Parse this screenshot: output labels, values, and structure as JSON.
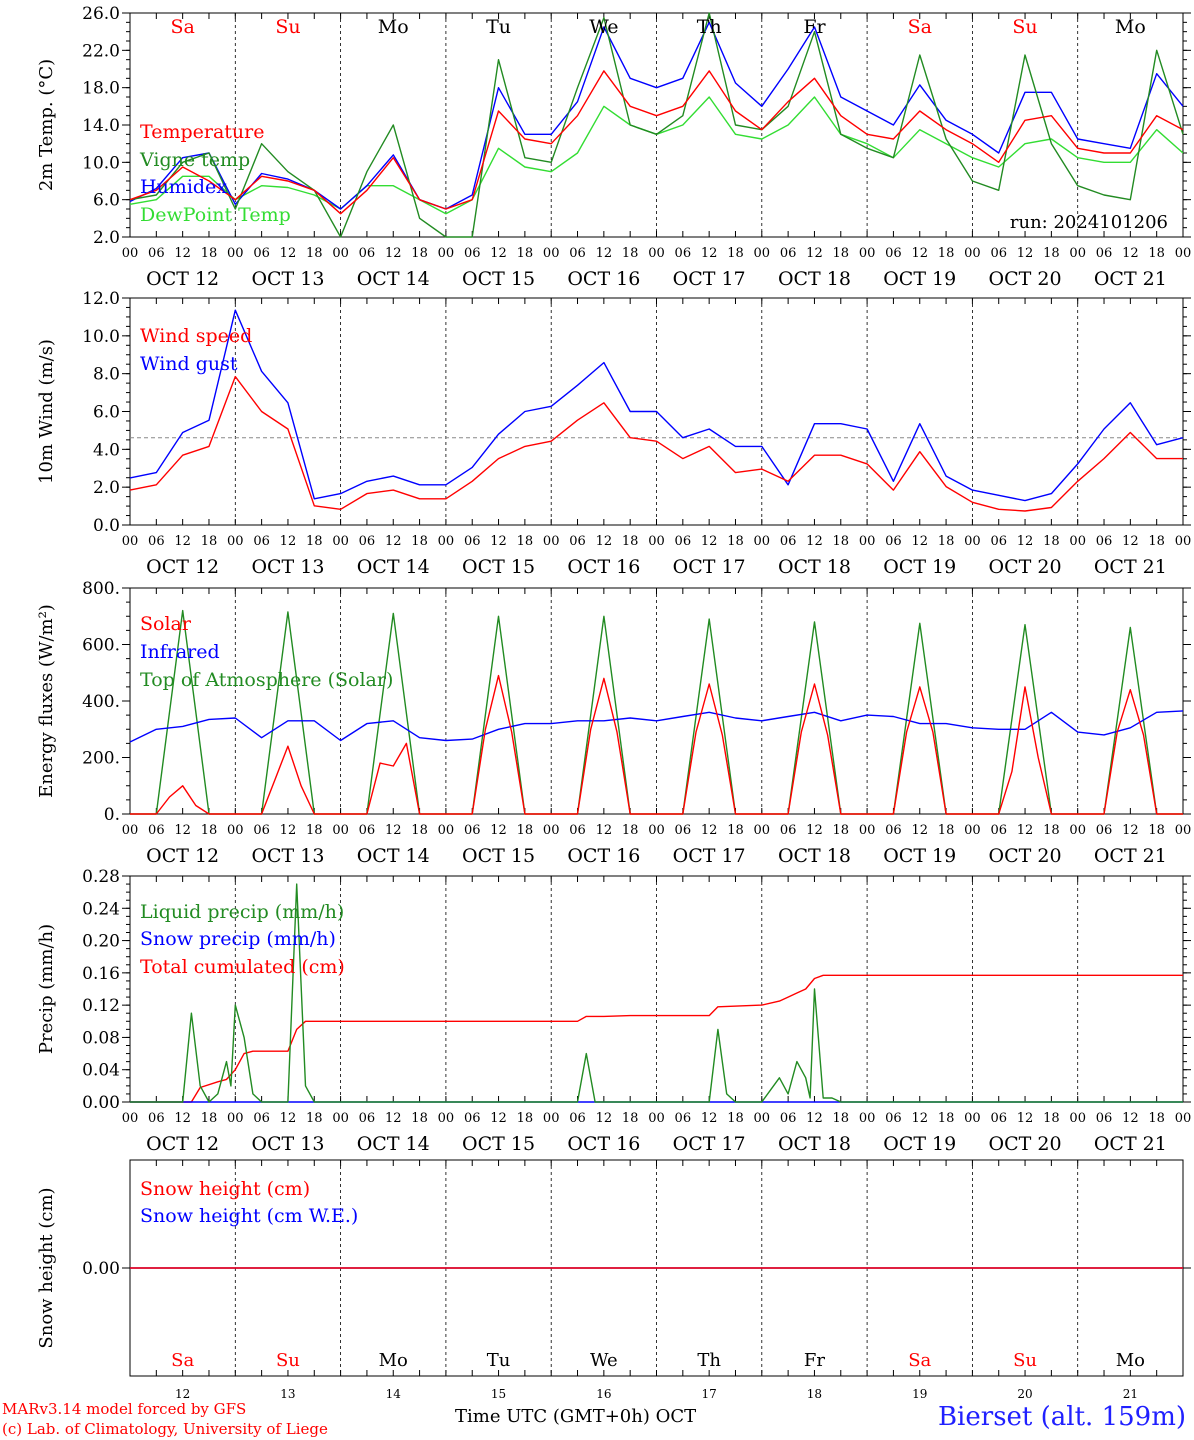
{
  "days": [
    "Sa",
    "Su",
    "Mo",
    "Tu",
    "We",
    "Th",
    "Fr",
    "Sa",
    "Su",
    "Mo"
  ],
  "day_colors": [
    "#ff0000",
    "#ff0000",
    "#000000",
    "#000000",
    "#000000",
    "#000000",
    "#000000",
    "#ff0000",
    "#ff0000",
    "#000000"
  ],
  "date_labels": [
    "OCT 12",
    "OCT 13",
    "OCT 14",
    "OCT 15",
    "OCT 16",
    "OCT 17",
    "OCT 18",
    "OCT 19",
    "OCT 20",
    "OCT 21"
  ],
  "hour_labels": [
    "00",
    "06",
    "12",
    "18"
  ],
  "bottom_day_numbers": [
    "12",
    "13",
    "14",
    "15",
    "16",
    "17",
    "18",
    "19",
    "20",
    "21"
  ],
  "x_axis_title": "Time UTC (GMT+0h) OCT",
  "credits": [
    "MARv3.14 model forced by GFS",
    "(c) Lab. of Climatology, University of Liege"
  ],
  "station": "Bierset (alt. 159m)",
  "run_label": "run: 2024101206",
  "chart_data": [
    {
      "type": "line",
      "ylabel": "2m Temp. (°C)",
      "ylim": [
        2,
        26
      ],
      "yticks": [
        "2.0",
        "6.0",
        "10.0",
        "14.0",
        "18.0",
        "22.0",
        "26.0"
      ],
      "x_unit": "hours since OCT 12 00 UTC",
      "series": [
        {
          "name": "Temperature",
          "color": "#ff0000",
          "x": [
            0,
            6,
            12,
            18,
            24,
            30,
            36,
            42,
            48,
            54,
            60,
            66,
            72,
            78,
            84,
            90,
            96,
            102,
            108,
            114,
            120,
            126,
            132,
            138,
            144,
            150,
            156,
            162,
            168,
            174,
            180,
            186,
            192,
            198,
            204,
            210,
            216,
            222,
            228,
            234,
            240
          ],
          "y": [
            6,
            7,
            9.5,
            8,
            6,
            8.5,
            8,
            7,
            4.5,
            7,
            10.5,
            6,
            5,
            6,
            15.5,
            12.5,
            12,
            15,
            19.8,
            16,
            15,
            16,
            19.8,
            15.5,
            13.5,
            16.5,
            19,
            15,
            13,
            12.5,
            15.5,
            13.5,
            12,
            10,
            14.5,
            15,
            11.5,
            11,
            11,
            15,
            13.5
          ]
        },
        {
          "name": "Vigne temp",
          "color": "#228b22",
          "x": [
            0,
            6,
            12,
            18,
            24,
            30,
            36,
            42,
            48,
            54,
            60,
            66,
            72,
            78,
            84,
            90,
            96,
            102,
            108,
            114,
            120,
            126,
            132,
            138,
            144,
            150,
            156,
            162,
            168,
            174,
            180,
            186,
            192,
            198,
            204,
            210,
            216,
            222,
            228,
            234,
            240
          ],
          "y": [
            6,
            6.5,
            10,
            11,
            5,
            12,
            9,
            7,
            0,
            9,
            14,
            4,
            1,
            1,
            21,
            10.5,
            10,
            18,
            25.5,
            14,
            13,
            15,
            26,
            14,
            13.5,
            16,
            24,
            13,
            11.5,
            10.5,
            21.5,
            12.5,
            8,
            7,
            21.5,
            12,
            7.5,
            6.5,
            6,
            22,
            13
          ]
        },
        {
          "name": "Humidex",
          "color": "#0000ff",
          "x": [
            0,
            6,
            12,
            18,
            24,
            30,
            36,
            42,
            48,
            54,
            60,
            66,
            72,
            78,
            84,
            90,
            96,
            102,
            108,
            114,
            120,
            126,
            132,
            138,
            144,
            150,
            156,
            162,
            168,
            174,
            180,
            186,
            192,
            198,
            204,
            210,
            216,
            222,
            228,
            234,
            240
          ],
          "y": [
            5.8,
            7.2,
            10.5,
            11,
            5.5,
            8.8,
            8.2,
            7,
            5,
            7.5,
            10.8,
            6,
            5,
            6.5,
            18,
            13,
            13,
            16.5,
            24.5,
            19,
            18,
            19,
            25,
            18.5,
            16,
            20,
            24.5,
            17,
            15.5,
            14,
            18.3,
            14.5,
            13,
            11,
            17.5,
            17.5,
            12.5,
            12,
            11.5,
            19.5,
            16
          ]
        },
        {
          "name": "DewPoint Temp",
          "color": "#33dd33",
          "x": [
            0,
            6,
            12,
            18,
            24,
            30,
            36,
            42,
            48,
            54,
            60,
            66,
            72,
            78,
            84,
            90,
            96,
            102,
            108,
            114,
            120,
            126,
            132,
            138,
            144,
            150,
            156,
            162,
            168,
            174,
            180,
            186,
            192,
            198,
            204,
            210,
            216,
            222,
            228,
            234,
            240
          ],
          "y": [
            5.5,
            6,
            8.5,
            8.5,
            6,
            7.5,
            7.3,
            6.5,
            5,
            7.5,
            7.5,
            6,
            4.5,
            6,
            11.5,
            9.5,
            9,
            11,
            16,
            14,
            13,
            14,
            17,
            13,
            12.5,
            14,
            17,
            13,
            12,
            10.5,
            13.5,
            12,
            10.5,
            9.5,
            12,
            12.5,
            10.5,
            10,
            10,
            13.5,
            11
          ]
        }
      ]
    },
    {
      "type": "line",
      "ylabel": "10m Wind (m/s)",
      "ylim": [
        0,
        13
      ],
      "yticks": [
        "0.0",
        "2.0",
        "4.0",
        "6.0",
        "8.0",
        "10.0",
        "12.0"
      ],
      "reference_line": 5,
      "x_unit": "hours since OCT 12 00 UTC",
      "series": [
        {
          "name": "Wind speed",
          "color": "#ff0000",
          "x": [
            0,
            6,
            12,
            18,
            24,
            30,
            36,
            42,
            48,
            54,
            60,
            66,
            72,
            78,
            84,
            90,
            96,
            102,
            108,
            114,
            120,
            126,
            132,
            138,
            144,
            150,
            156,
            162,
            168,
            174,
            180,
            186,
            192,
            198,
            204,
            210,
            216,
            222,
            228,
            234,
            240
          ],
          "y": [
            2,
            2.3,
            4,
            4.5,
            8.5,
            6.5,
            5.5,
            1.1,
            0.9,
            1.8,
            2,
            1.5,
            1.5,
            2.5,
            3.8,
            4.5,
            4.8,
            6,
            7,
            5,
            4.8,
            3.8,
            4.5,
            3,
            3.2,
            2.5,
            4,
            4,
            3.5,
            2,
            4.2,
            2.2,
            1.3,
            0.9,
            0.8,
            1,
            2.5,
            3.8,
            5.3,
            3.8,
            3.8
          ]
        },
        {
          "name": "Wind gust",
          "color": "#0000ff",
          "x": [
            0,
            6,
            12,
            18,
            24,
            30,
            36,
            42,
            48,
            54,
            60,
            66,
            72,
            78,
            84,
            90,
            96,
            102,
            108,
            114,
            120,
            126,
            132,
            138,
            144,
            150,
            156,
            162,
            168,
            174,
            180,
            186,
            192,
            198,
            204,
            210,
            216,
            222,
            228,
            234,
            240
          ],
          "y": [
            2.7,
            3,
            5.3,
            6,
            12.3,
            8.8,
            7,
            1.5,
            1.8,
            2.5,
            2.8,
            2.3,
            2.3,
            3.3,
            5.2,
            6.5,
            6.8,
            8,
            9.3,
            6.5,
            6.5,
            5,
            5.5,
            4.5,
            4.5,
            2.3,
            5.8,
            5.8,
            5.5,
            2.5,
            5.8,
            2.8,
            2,
            1.7,
            1.4,
            1.8,
            3.5,
            5.5,
            7,
            4.6,
            5
          ]
        }
      ]
    },
    {
      "type": "line",
      "ylabel": "Energy fluxes (W/m²)",
      "ylim": [
        0,
        800
      ],
      "yticks": [
        "0.",
        "200.",
        "400.",
        "600.",
        "800."
      ],
      "x_unit": "hours since OCT 12 00 UTC",
      "series": [
        {
          "name": "Solar",
          "color": "#ff0000",
          "x": [
            0,
            6,
            9,
            12,
            15,
            18,
            24,
            30,
            33,
            36,
            39,
            42,
            48,
            54,
            57,
            60,
            63,
            66,
            72,
            78,
            81,
            84,
            87,
            90,
            96,
            102,
            105,
            108,
            111,
            114,
            120,
            126,
            129,
            132,
            135,
            138,
            144,
            150,
            153,
            156,
            159,
            162,
            168,
            174,
            177,
            180,
            183,
            186,
            192,
            198,
            201,
            204,
            207,
            210,
            216,
            222,
            225,
            228,
            231,
            234,
            240
          ],
          "y": [
            0,
            0,
            60,
            100,
            30,
            0,
            0,
            0,
            120,
            240,
            100,
            0,
            0,
            0,
            180,
            170,
            250,
            0,
            0,
            0,
            300,
            490,
            290,
            0,
            0,
            0,
            300,
            480,
            290,
            0,
            0,
            0,
            290,
            460,
            280,
            0,
            0,
            0,
            290,
            460,
            280,
            0,
            0,
            0,
            290,
            450,
            290,
            0,
            0,
            0,
            150,
            450,
            200,
            0,
            0,
            0,
            290,
            440,
            280,
            0,
            0
          ]
        },
        {
          "name": "Infrared",
          "color": "#0000ff",
          "x": [
            0,
            6,
            12,
            18,
            24,
            30,
            36,
            42,
            48,
            54,
            60,
            66,
            72,
            78,
            84,
            90,
            96,
            102,
            108,
            114,
            120,
            126,
            132,
            138,
            144,
            150,
            156,
            162,
            168,
            174,
            180,
            186,
            192,
            198,
            204,
            210,
            216,
            222,
            228,
            234,
            240
          ],
          "y": [
            255,
            300,
            310,
            335,
            340,
            270,
            330,
            330,
            260,
            320,
            330,
            270,
            260,
            265,
            300,
            320,
            320,
            330,
            330,
            340,
            330,
            345,
            360,
            340,
            330,
            345,
            360,
            330,
            350,
            345,
            320,
            320,
            305,
            300,
            300,
            360,
            290,
            280,
            305,
            360,
            365
          ]
        },
        {
          "name": "Top of Atmosphere (Solar)",
          "color": "#228b22",
          "x": [
            0,
            6,
            12,
            18,
            24,
            30,
            36,
            42,
            48,
            54,
            60,
            66,
            72,
            78,
            84,
            90,
            96,
            102,
            108,
            114,
            120,
            126,
            132,
            138,
            144,
            150,
            156,
            162,
            168,
            174,
            180,
            186,
            192,
            198,
            204,
            210,
            216,
            222,
            228,
            234,
            240
          ],
          "y": [
            0,
            0,
            720,
            0,
            0,
            0,
            715,
            0,
            0,
            0,
            710,
            0,
            0,
            0,
            700,
            0,
            0,
            0,
            700,
            0,
            0,
            0,
            690,
            0,
            0,
            0,
            680,
            0,
            0,
            0,
            675,
            0,
            0,
            0,
            670,
            0,
            0,
            0,
            660,
            0,
            0
          ]
        }
      ]
    },
    {
      "type": "line",
      "ylabel": "Precip (mm/h)",
      "ylim": [
        0,
        0.28
      ],
      "yticks": [
        "0.00",
        "0.04",
        "0.08",
        "0.12",
        "0.16",
        "0.20",
        "0.24",
        "0.28"
      ],
      "x_unit": "hours since OCT 12 00 UTC",
      "series": [
        {
          "name": "Liquid precip (mm/h)",
          "color": "#228b22",
          "x": [
            0,
            12,
            14,
            16,
            18,
            20,
            22,
            23,
            24,
            26,
            28,
            30,
            36,
            38,
            40,
            42,
            44,
            48,
            102,
            104,
            106,
            108,
            114,
            132,
            134,
            136,
            138,
            144,
            148,
            150,
            152,
            154,
            155,
            156,
            158,
            160,
            162,
            168,
            240
          ],
          "y": [
            0,
            0,
            0.11,
            0.02,
            0,
            0.01,
            0.05,
            0.02,
            0.12,
            0.08,
            0.01,
            0,
            0,
            0.27,
            0.02,
            0,
            0,
            0,
            0,
            0.06,
            0,
            0,
            0,
            0,
            0.09,
            0.01,
            0,
            0,
            0.03,
            0.01,
            0.05,
            0.03,
            0.005,
            0.14,
            0.005,
            0.005,
            0,
            0,
            0
          ]
        },
        {
          "name": "Snow precip (mm/h)",
          "color": "#0000ff",
          "x": [
            0,
            240
          ],
          "y": [
            0,
            0
          ]
        },
        {
          "name": "Total cumulated (cm)",
          "color": "#ff0000",
          "x": [
            0,
            14,
            16,
            20,
            22,
            24,
            26,
            28,
            36,
            38,
            40,
            42,
            48,
            96,
            102,
            104,
            108,
            114,
            132,
            134,
            144,
            148,
            150,
            152,
            154,
            156,
            158,
            168,
            240
          ],
          "y": [
            0,
            0,
            0.018,
            0.025,
            0.028,
            0.04,
            0.06,
            0.063,
            0.063,
            0.09,
            0.1,
            0.1,
            0.1,
            0.1,
            0.1,
            0.106,
            0.106,
            0.107,
            0.107,
            0.118,
            0.12,
            0.125,
            0.13,
            0.135,
            0.14,
            0.153,
            0.157,
            0.157,
            0.157
          ]
        }
      ]
    },
    {
      "type": "line",
      "ylabel": "Snow height (cm)",
      "ylim": [
        -1,
        1
      ],
      "yticks": [
        "0.00"
      ],
      "x_unit": "hours since OCT 12 00 UTC",
      "series": [
        {
          "name": "Snow height (cm)",
          "color": "#ff0000",
          "x": [
            0,
            240
          ],
          "y": [
            0,
            0
          ]
        },
        {
          "name": "Snow height (cm W.E.)",
          "color": "#0000ff",
          "x": [
            0,
            240
          ],
          "y": [
            0,
            0
          ]
        }
      ]
    }
  ]
}
